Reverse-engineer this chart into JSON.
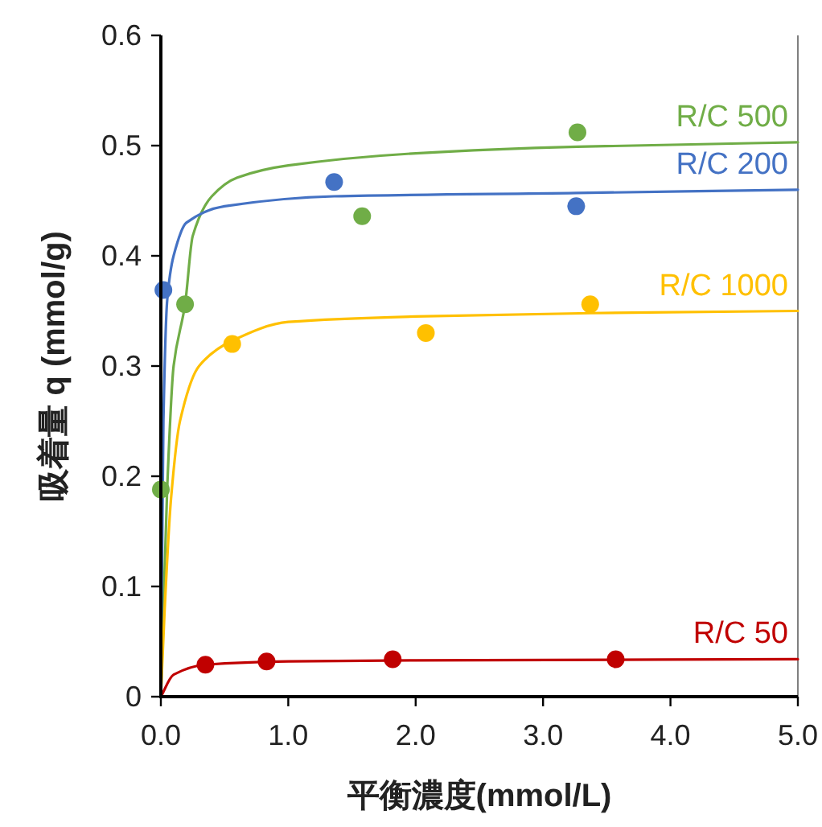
{
  "chart_data": {
    "type": "scatter",
    "xlabel": "平衡濃度(mmol/L)",
    "ylabel": "吸着量 q (mmol/g)",
    "xlim": [
      0,
      5
    ],
    "xticks": [
      {
        "value": 0,
        "label": "0.0"
      },
      {
        "value": 1,
        "label": "1.0"
      },
      {
        "value": 2,
        "label": "2.0"
      },
      {
        "value": 3,
        "label": "3.0"
      },
      {
        "value": 4,
        "label": "4.0"
      },
      {
        "value": 5,
        "label": "5.0"
      }
    ],
    "ylim": [
      0,
      0.6
    ],
    "yticks": [
      0,
      0.1,
      0.2,
      0.3,
      0.4,
      0.5,
      0.6
    ],
    "grid": false,
    "marker": "circle",
    "series": [
      {
        "type": "line",
        "marker": "none",
        "name": "R/C 500",
        "color": "#70ad47",
        "x": [
          0,
          0.05,
          0.1,
          0.19,
          0.25,
          0.4,
          0.6,
          1,
          2,
          3.27,
          5
        ],
        "values": [
          0,
          0.19,
          0.3,
          0.356,
          0.418,
          0.454,
          0.471,
          0.482,
          0.493,
          0.499,
          0.503
        ]
      },
      {
        "type": "line",
        "marker": "none",
        "name": "R/C 200",
        "color": "#4472c4",
        "x": [
          0,
          0.02,
          0.05,
          0.1,
          0.2,
          0.5,
          1.36,
          3.26,
          5
        ],
        "values": [
          0,
          0.25,
          0.36,
          0.4,
          0.43,
          0.445,
          0.454,
          0.457,
          0.46
        ]
      },
      {
        "type": "line",
        "marker": "none",
        "name": "R/C 1000",
        "color": "#ffc000",
        "x": [
          0,
          0.03,
          0.08,
          0.15,
          0.3,
          0.56,
          1,
          2,
          3.37,
          5
        ],
        "values": [
          0,
          0.08,
          0.18,
          0.25,
          0.3,
          0.323,
          0.34,
          0.345,
          0.348,
          0.35
        ]
      },
      {
        "type": "line",
        "marker": "none",
        "name": "R/C 50",
        "color": "#c00000",
        "x": [
          0,
          0.1,
          0.35,
          1,
          2,
          5
        ],
        "values": [
          0,
          0.02,
          0.029,
          0.032,
          0.033,
          0.034
        ]
      },
      {
        "color": "#70ad47",
        "x": [
          0.0,
          0.19,
          1.58,
          3.27
        ],
        "values": [
          0.188,
          0.356,
          0.436,
          0.512
        ]
      },
      {
        "color": "#4472c4",
        "x": [
          0.02,
          1.36,
          3.26
        ],
        "values": [
          0.369,
          0.467,
          0.445
        ]
      },
      {
        "color": "#ffc000",
        "x": [
          0.56,
          2.08,
          3.37
        ],
        "values": [
          0.32,
          0.33,
          0.356
        ]
      },
      {
        "color": "#c00000",
        "x": [
          0.35,
          0.83,
          1.82,
          3.57
        ],
        "values": [
          0.029,
          0.032,
          0.034,
          0.034
        ]
      }
    ]
  }
}
